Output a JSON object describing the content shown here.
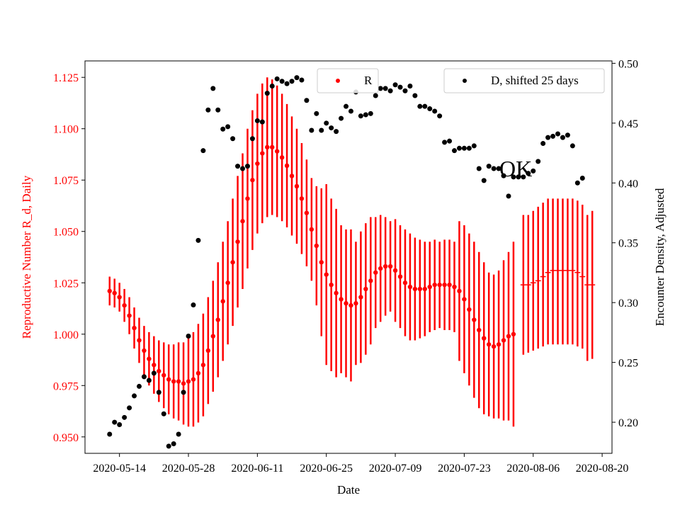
{
  "chart_data": {
    "type": "scatter",
    "title": "",
    "xlabel": "Date",
    "ylabel_left": "Reproductive Number R_d, Daily",
    "ylabel_right": "Encounter Density, Adjusted",
    "annotation": "OK",
    "x_ticks": [
      "2020-05-14",
      "2020-05-28",
      "2020-06-11",
      "2020-06-25",
      "2020-07-09",
      "2020-07-23",
      "2020-08-06",
      "2020-08-20"
    ],
    "xlim": [
      "2020-05-07",
      "2020-08-22"
    ],
    "y_left": {
      "lim": [
        0.942,
        1.133
      ],
      "ticks": [
        0.95,
        0.975,
        1.0,
        1.025,
        1.05,
        1.075,
        1.1,
        1.125
      ],
      "tick_labels": [
        "0.950",
        "0.975",
        "1.000",
        "1.025",
        "1.050",
        "1.075",
        "1.100",
        "1.125"
      ],
      "color": "#ff0000"
    },
    "y_right": {
      "lim": [
        0.174,
        0.502
      ],
      "ticks": [
        0.2,
        0.25,
        0.3,
        0.35,
        0.4,
        0.45,
        0.5
      ],
      "tick_labels": [
        "0.20",
        "0.25",
        "0.30",
        "0.35",
        "0.40",
        "0.45",
        "0.50"
      ],
      "color": "#000000"
    },
    "legend": [
      {
        "label": "R",
        "color": "#ff0000",
        "placement": "upper-center"
      },
      {
        "label": "D, shifted 25 days",
        "color": "#000000",
        "placement": "upper-right"
      }
    ],
    "series": [
      {
        "name": "R",
        "axis": "left",
        "color": "#ff0000",
        "start": "2020-05-12",
        "values": [
          1.021,
          1.02,
          1.018,
          1.014,
          1.009,
          1.003,
          0.997,
          0.992,
          0.988,
          0.985,
          0.982,
          0.98,
          0.978,
          0.977,
          0.977,
          0.976,
          0.977,
          0.978,
          0.981,
          0.985,
          0.992,
          0.999,
          1.007,
          1.016,
          1.025,
          1.035,
          1.045,
          1.055,
          1.066,
          1.075,
          1.083,
          1.088,
          1.091,
          1.091,
          1.089,
          1.086,
          1.082,
          1.077,
          1.072,
          1.066,
          1.059,
          1.051,
          1.043,
          1.035,
          1.029,
          1.024,
          1.02,
          1.017,
          1.015,
          1.014,
          1.015,
          1.018,
          1.022,
          1.026,
          1.03,
          1.032,
          1.033,
          1.033,
          1.031,
          1.028,
          1.025,
          1.023,
          1.022,
          1.022,
          1.022,
          1.023,
          1.024,
          1.024,
          1.024,
          1.024,
          1.023,
          1.021,
          1.017,
          1.012,
          1.007,
          1.002,
          0.998,
          0.995,
          0.994,
          0.995,
          0.997,
          0.999,
          1.0
        ],
        "lower": [
          1.014,
          1.013,
          1.011,
          1.006,
          1.0,
          0.993,
          0.986,
          0.98,
          0.975,
          0.971,
          0.967,
          0.964,
          0.961,
          0.959,
          0.958,
          0.956,
          0.955,
          0.955,
          0.957,
          0.96,
          0.966,
          0.972,
          0.979,
          0.987,
          0.995,
          1.004,
          1.013,
          1.022,
          1.032,
          1.041,
          1.049,
          1.054,
          1.057,
          1.058,
          1.057,
          1.055,
          1.052,
          1.048,
          1.044,
          1.039,
          1.033,
          1.026,
          1.014,
          0.999,
          0.985,
          0.982,
          0.979,
          0.981,
          0.979,
          0.977,
          0.985,
          0.986,
          0.99,
          0.995,
          1.003,
          1.006,
          1.009,
          1.011,
          1.006,
          1.003,
          0.999,
          0.997,
          0.997,
          0.998,
          0.999,
          1.001,
          1.002,
          1.003,
          1.002,
          1.002,
          1.001,
          0.987,
          0.981,
          0.975,
          0.969,
          0.964,
          0.961,
          0.96,
          0.959,
          0.959,
          0.958,
          0.958,
          0.955
        ],
        "upper": [
          1.028,
          1.027,
          1.025,
          1.022,
          1.018,
          1.013,
          1.008,
          1.004,
          1.001,
          0.999,
          0.997,
          0.996,
          0.995,
          0.995,
          0.996,
          0.996,
          0.999,
          1.001,
          1.005,
          1.01,
          1.018,
          1.026,
          1.035,
          1.045,
          1.055,
          1.066,
          1.077,
          1.088,
          1.1,
          1.109,
          1.117,
          1.122,
          1.125,
          1.124,
          1.121,
          1.117,
          1.112,
          1.106,
          1.1,
          1.093,
          1.085,
          1.076,
          1.072,
          1.071,
          1.073,
          1.066,
          1.061,
          1.053,
          1.051,
          1.051,
          1.045,
          1.05,
          1.054,
          1.057,
          1.057,
          1.058,
          1.057,
          1.055,
          1.056,
          1.053,
          1.051,
          1.049,
          1.047,
          1.046,
          1.045,
          1.045,
          1.046,
          1.045,
          1.046,
          1.046,
          1.045,
          1.055,
          1.053,
          1.049,
          1.045,
          1.04,
          1.035,
          1.03,
          1.029,
          1.031,
          1.036,
          1.04,
          1.045
        ],
        "tail": {
          "start": "2020-08-04",
          "values": [
            1.024,
            1.024,
            1.025,
            1.026,
            1.028,
            1.03,
            1.031,
            1.031,
            1.031,
            1.031,
            1.031,
            1.03,
            1.028,
            1.024,
            1.024
          ],
          "lower": [
            0.99,
            0.991,
            0.992,
            0.993,
            0.994,
            0.995,
            0.995,
            0.995,
            0.995,
            0.995,
            0.995,
            0.994,
            0.993,
            0.987,
            0.988
          ],
          "upper": [
            1.058,
            1.058,
            1.06,
            1.062,
            1.064,
            1.066,
            1.066,
            1.066,
            1.066,
            1.066,
            1.066,
            1.065,
            1.063,
            1.058,
            1.06
          ]
        }
      },
      {
        "name": "D, shifted 25 days",
        "axis": "right",
        "color": "#000000",
        "start": "2020-05-12",
        "values": [
          0.19,
          0.2,
          0.198,
          0.204,
          0.212,
          0.222,
          0.23,
          0.238,
          0.235,
          0.241,
          0.225,
          0.207,
          0.18,
          0.182,
          0.19,
          0.225,
          0.272,
          0.298,
          0.352,
          0.427,
          0.461,
          0.479,
          0.461,
          0.445,
          0.447,
          0.437,
          0.414,
          0.412,
          0.414,
          0.437,
          0.452,
          0.451,
          0.475,
          0.481,
          0.487,
          0.485,
          0.483,
          0.485,
          0.488,
          0.486,
          0.469,
          0.444,
          0.458,
          0.444,
          0.45,
          0.446,
          0.443,
          0.454,
          0.464,
          0.46,
          0.476,
          0.456,
          0.457,
          0.458,
          0.473,
          0.479,
          0.479,
          0.477,
          0.482,
          0.48,
          0.477,
          0.481,
          0.473,
          0.464,
          0.464,
          0.462,
          0.46,
          0.456,
          0.434,
          0.435,
          0.427,
          0.429,
          0.429,
          0.429,
          0.431,
          0.412,
          0.402,
          0.414,
          0.412,
          0.412,
          0.406,
          0.389,
          0.405,
          0.405,
          0.405,
          0.408,
          0.41,
          0.418,
          0.433,
          0.438,
          0.439,
          0.441,
          0.438,
          0.44,
          0.431,
          0.4,
          0.404
        ]
      }
    ]
  }
}
